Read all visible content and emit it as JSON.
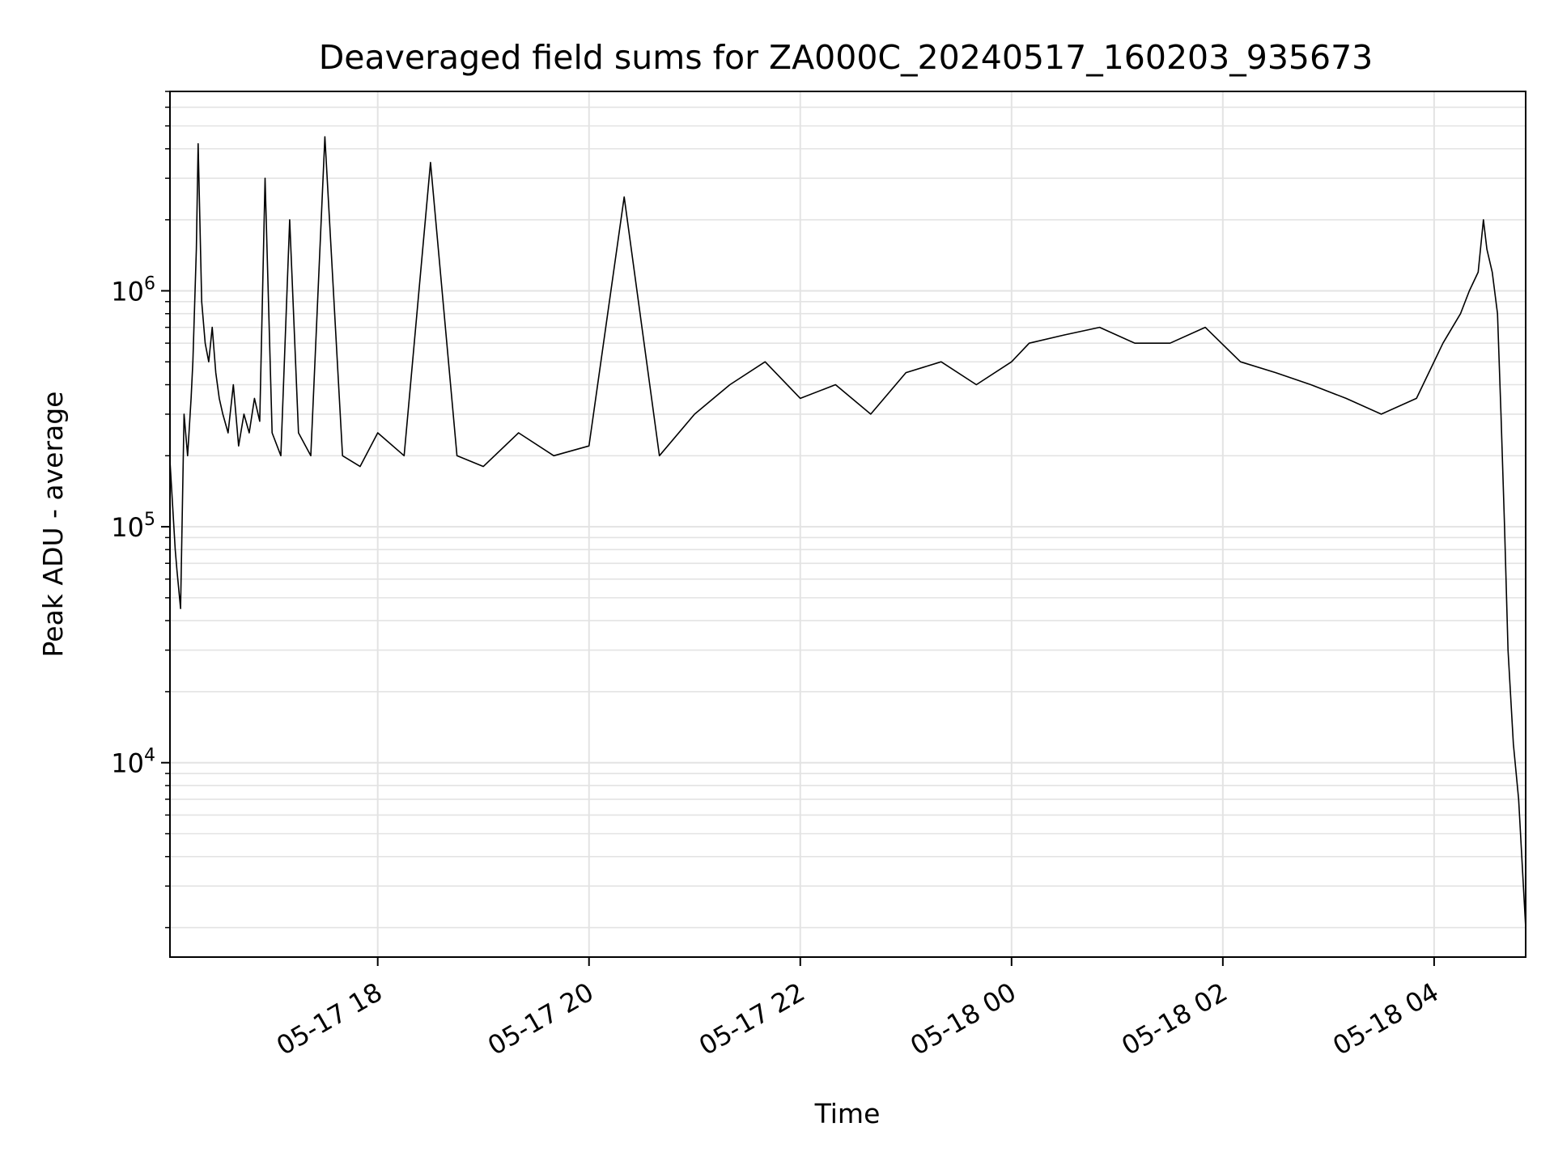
{
  "chart_data": {
    "type": "line",
    "title": "Deaveraged field sums for ZA000C_20240517_160203_935673",
    "xlabel": "Time",
    "ylabel": "Peak ADU - average",
    "yscale": "log",
    "xlim": [
      "2024-05-17 16:02",
      "2024-05-18 04:52"
    ],
    "ylim": [
      1500,
      7000000
    ],
    "grid": "both (major and minor), light gray",
    "x_ticks": [
      {
        "value": "2024-05-17 18:00",
        "label": "05-17 18"
      },
      {
        "value": "2024-05-17 20:00",
        "label": "05-17 20"
      },
      {
        "value": "2024-05-17 22:00",
        "label": "05-17 22"
      },
      {
        "value": "2024-05-18 00:00",
        "label": "05-18 00"
      },
      {
        "value": "2024-05-18 02:00",
        "label": "05-18 02"
      },
      {
        "value": "2024-05-18 04:00",
        "label": "05-18 04"
      }
    ],
    "y_ticks": [
      {
        "value": 10000,
        "base": "10",
        "exp": "4"
      },
      {
        "value": 100000,
        "base": "10",
        "exp": "5"
      },
      {
        "value": 1000000,
        "base": "10",
        "exp": "6"
      }
    ],
    "series": [
      {
        "color": "#000000",
        "x": [
          "2024-05-17 16:02",
          "2024-05-17 16:05",
          "2024-05-17 16:06",
          "2024-05-17 16:08",
          "2024-05-17 16:10",
          "2024-05-17 16:12",
          "2024-05-17 16:14",
          "2024-05-17 16:15",
          "2024-05-17 16:17",
          "2024-05-17 16:18",
          "2024-05-17 16:20",
          "2024-05-17 16:22",
          "2024-05-17 16:24",
          "2024-05-17 16:26",
          "2024-05-17 16:28",
          "2024-05-17 16:30",
          "2024-05-17 16:32",
          "2024-05-17 16:35",
          "2024-05-17 16:38",
          "2024-05-17 16:41",
          "2024-05-17 16:44",
          "2024-05-17 16:47",
          "2024-05-17 16:50",
          "2024-05-17 16:53",
          "2024-05-17 16:56",
          "2024-05-17 17:00",
          "2024-05-17 17:05",
          "2024-05-17 17:10",
          "2024-05-17 17:15",
          "2024-05-17 17:22",
          "2024-05-17 17:30",
          "2024-05-17 17:40",
          "2024-05-17 17:50",
          "2024-05-17 18:00",
          "2024-05-17 18:15",
          "2024-05-17 18:30",
          "2024-05-17 18:45",
          "2024-05-17 19:00",
          "2024-05-17 19:20",
          "2024-05-17 19:40",
          "2024-05-17 20:00",
          "2024-05-17 20:20",
          "2024-05-17 20:40",
          "2024-05-17 21:00",
          "2024-05-17 21:20",
          "2024-05-17 21:40",
          "2024-05-17 22:00",
          "2024-05-17 22:20",
          "2024-05-17 22:40",
          "2024-05-17 23:00",
          "2024-05-17 23:20",
          "2024-05-17 23:40",
          "2024-05-18 00:00",
          "2024-05-18 00:10",
          "2024-05-18 00:30",
          "2024-05-18 00:50",
          "2024-05-18 01:10",
          "2024-05-18 01:30",
          "2024-05-18 01:50",
          "2024-05-18 02:10",
          "2024-05-18 02:30",
          "2024-05-18 02:50",
          "2024-05-18 03:10",
          "2024-05-18 03:30",
          "2024-05-18 03:50",
          "2024-05-18 04:05",
          "2024-05-18 04:15",
          "2024-05-18 04:20",
          "2024-05-18 04:25",
          "2024-05-18 04:28",
          "2024-05-18 04:30",
          "2024-05-18 04:33",
          "2024-05-18 04:36",
          "2024-05-18 04:38",
          "2024-05-18 04:40",
          "2024-05-18 04:42",
          "2024-05-18 04:45",
          "2024-05-18 04:48",
          "2024-05-18 04:52"
        ],
        "y": [
          190000,
          80000,
          65000,
          45000,
          300000,
          200000,
          350000,
          500000,
          1500000,
          4200000,
          900000,
          600000,
          500000,
          700000,
          450000,
          350000,
          300000,
          250000,
          400000,
          220000,
          300000,
          250000,
          350000,
          280000,
          3000000,
          250000,
          200000,
          2000000,
          250000,
          200000,
          4500000,
          200000,
          180000,
          250000,
          200000,
          3500000,
          200000,
          180000,
          250000,
          200000,
          220000,
          2500000,
          200000,
          300000,
          400000,
          500000,
          350000,
          400000,
          300000,
          450000,
          500000,
          400000,
          500000,
          600000,
          650000,
          700000,
          600000,
          600000,
          700000,
          500000,
          450000,
          400000,
          350000,
          300000,
          350000,
          600000,
          800000,
          1000000,
          1200000,
          2000000,
          1500000,
          1200000,
          800000,
          300000,
          100000,
          30000,
          12000,
          7000,
          2000
        ]
      }
    ]
  }
}
